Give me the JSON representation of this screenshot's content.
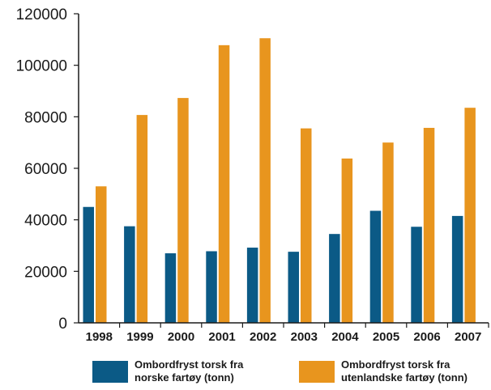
{
  "chart_data": {
    "type": "bar",
    "categories": [
      "1998",
      "1999",
      "2000",
      "2001",
      "2002",
      "2003",
      "2004",
      "2005",
      "2006",
      "2007"
    ],
    "series": [
      {
        "name": "Ombordfryst torsk fra norske fartøy (tonn)",
        "name_lines": [
          "Ombordfryst torsk fra",
          "norske fartøy (tonn)"
        ],
        "color": "#0b5a86",
        "values": [
          45000,
          37500,
          27000,
          27800,
          29200,
          27600,
          34500,
          43500,
          37300,
          41500
        ]
      },
      {
        "name": "Ombordfryst torsk fra utenlandske fartøy (tonn)",
        "name_lines": [
          "Ombordfryst torsk fra",
          "utenlandske fartøy (tonn)"
        ],
        "color": "#e8951e",
        "values": [
          53000,
          80700,
          87300,
          107800,
          110500,
          75500,
          63800,
          70000,
          75700,
          83500
        ]
      }
    ],
    "y_ticks": [
      "0",
      "20000",
      "40000",
      "60000",
      "80000",
      "100000",
      "120000"
    ],
    "ylim": [
      0,
      120000
    ],
    "grid": false,
    "legend_position": "bottom"
  }
}
